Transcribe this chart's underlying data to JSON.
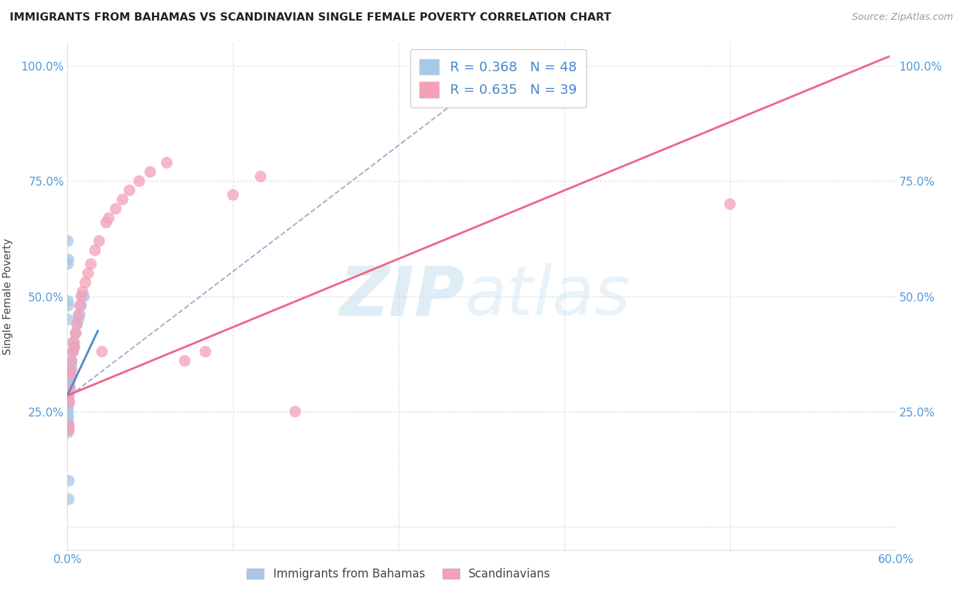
{
  "title": "IMMIGRANTS FROM BAHAMAS VS SCANDINAVIAN SINGLE FEMALE POVERTY CORRELATION CHART",
  "source": "Source: ZipAtlas.com",
  "ylabel_label": "Single Female Poverty",
  "xlim": [
    0.0,
    0.6
  ],
  "ylim": [
    -0.05,
    1.05
  ],
  "background_color": "#ffffff",
  "watermark_zip": "ZIP",
  "watermark_atlas": "atlas",
  "legend_R1": "R = 0.368",
  "legend_N1": "N = 48",
  "legend_R2": "R = 0.635",
  "legend_N2": "N = 39",
  "color_blue": "#a8c8e8",
  "color_pink": "#f4a0b8",
  "line_blue": "#5588cc",
  "line_pink": "#ee6688",
  "line_dashed": "#aaaacc",
  "bahamas_x": [
    0.0003,
    0.0003,
    0.0003,
    0.0003,
    0.0003,
    0.0005,
    0.0005,
    0.0005,
    0.0005,
    0.0005,
    0.0007,
    0.0007,
    0.0007,
    0.0008,
    0.0008,
    0.0008,
    0.001,
    0.001,
    0.001,
    0.001,
    0.0012,
    0.0012,
    0.0013,
    0.0015,
    0.0015,
    0.0017,
    0.002,
    0.002,
    0.002,
    0.003,
    0.003,
    0.004,
    0.005,
    0.005,
    0.006,
    0.007,
    0.008,
    0.009,
    0.01,
    0.012,
    0.0003,
    0.0003,
    0.0004,
    0.0005,
    0.0006,
    0.0007,
    0.001,
    0.001
  ],
  "bahamas_y": [
    0.28,
    0.295,
    0.305,
    0.315,
    0.325,
    0.27,
    0.26,
    0.25,
    0.24,
    0.235,
    0.225,
    0.215,
    0.205,
    0.28,
    0.29,
    0.3,
    0.285,
    0.295,
    0.305,
    0.315,
    0.32,
    0.31,
    0.33,
    0.315,
    0.305,
    0.3,
    0.34,
    0.33,
    0.32,
    0.35,
    0.36,
    0.38,
    0.4,
    0.39,
    0.42,
    0.44,
    0.45,
    0.46,
    0.48,
    0.5,
    0.57,
    0.62,
    0.49,
    0.45,
    0.48,
    0.58,
    0.1,
    0.06
  ],
  "scand_x": [
    0.0004,
    0.0006,
    0.001,
    0.001,
    0.0015,
    0.002,
    0.002,
    0.003,
    0.003,
    0.004,
    0.004,
    0.005,
    0.006,
    0.007,
    0.008,
    0.009,
    0.01,
    0.011,
    0.013,
    0.015,
    0.017,
    0.02,
    0.023,
    0.025,
    0.028,
    0.03,
    0.035,
    0.04,
    0.045,
    0.052,
    0.06,
    0.072,
    0.085,
    0.1,
    0.12,
    0.14,
    0.165,
    0.31,
    0.48
  ],
  "scand_y": [
    0.28,
    0.29,
    0.22,
    0.21,
    0.27,
    0.3,
    0.33,
    0.34,
    0.36,
    0.38,
    0.4,
    0.39,
    0.42,
    0.44,
    0.46,
    0.48,
    0.5,
    0.51,
    0.53,
    0.55,
    0.57,
    0.6,
    0.62,
    0.38,
    0.66,
    0.67,
    0.69,
    0.71,
    0.73,
    0.75,
    0.77,
    0.79,
    0.36,
    0.38,
    0.72,
    0.76,
    0.25,
    0.97,
    0.7
  ],
  "blue_line_x": [
    0.0,
    0.022
  ],
  "blue_line_y": [
    0.285,
    0.425
  ],
  "pink_line_x": [
    0.0,
    0.595
  ],
  "pink_line_y": [
    0.285,
    1.02
  ],
  "dash_line_x": [
    0.002,
    0.32
  ],
  "dash_line_y": [
    0.285,
    1.01
  ]
}
